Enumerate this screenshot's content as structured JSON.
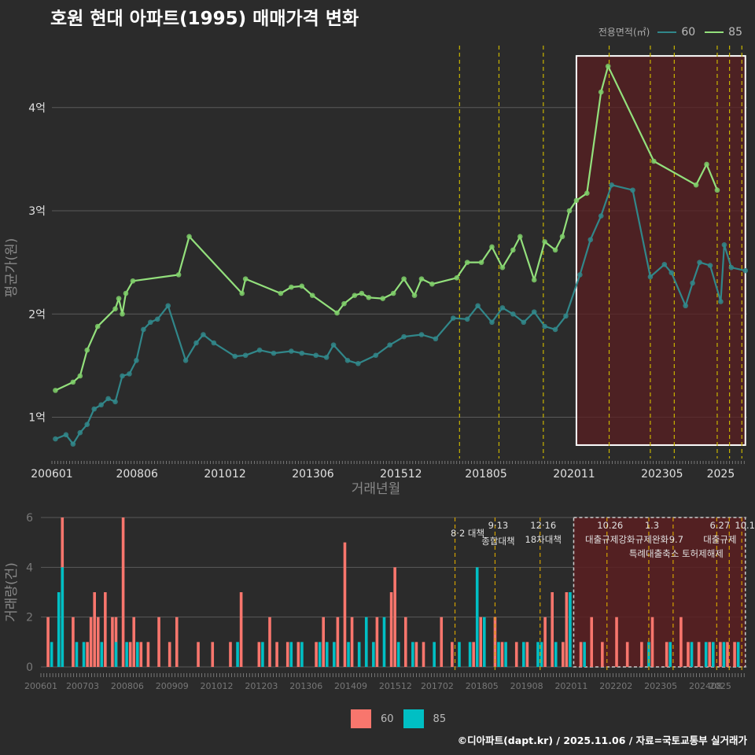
{
  "title": "호원 현대 아파트(1995) 매매가격 변화",
  "footer": "©디아파트(dapt.kr) / 2025.11.06 / 자료=국토교통부 실거래가",
  "colors": {
    "s60_line": "#31878a",
    "s60_point": "#31878a",
    "s85_line": "#93e07c",
    "s85_point": "#7fcf6a",
    "bar60": "#f8766d",
    "bar85": "#00bfc4",
    "policy": "#c8b400",
    "highlight": "#5a1f21"
  },
  "legend_top": {
    "title": "전용면적(㎡)",
    "items": [
      {
        "name": "60",
        "color": "#31878a"
      },
      {
        "name": "85",
        "color": "#93e07c"
      }
    ]
  },
  "legend_bottom": {
    "items": [
      {
        "name": "60",
        "color": "#f8766d"
      },
      {
        "name": "85",
        "color": "#00bfc4"
      }
    ]
  },
  "chart_data": [
    {
      "type": "line",
      "title": "호원 현대 아파트(1995) 매매가격 변화",
      "xlabel": "거래년월",
      "ylabel": "평균가(원)",
      "x_ticks": [
        "200601",
        "200806",
        "201012",
        "201306",
        "201512",
        "201805",
        "202011",
        "202305",
        "2025"
      ],
      "y_ticks": [
        {
          "value": 1,
          "label": "1억"
        },
        {
          "value": 2,
          "label": "2억"
        },
        {
          "value": 3,
          "label": "3억"
        },
        {
          "value": 4,
          "label": "4억"
        }
      ],
      "ylim": [
        0.6,
        4.6
      ],
      "xlim": [
        2006.0,
        2025.75
      ],
      "highlight": {
        "from": 2020.9,
        "to": 2025.7,
        "ymin": 0.73,
        "ymax": 4.5
      },
      "policy_lines": [
        2017.58,
        2018.7,
        2019.96,
        2021.83,
        2023.0,
        2023.68,
        2024.9,
        2025.25,
        2025.6
      ],
      "series": [
        {
          "name": "60",
          "points": [
            [
              2006.1,
              0.79
            ],
            [
              2006.4,
              0.83
            ],
            [
              2006.6,
              0.74
            ],
            [
              2006.8,
              0.85
            ],
            [
              2007.0,
              0.93
            ],
            [
              2007.2,
              1.08
            ],
            [
              2007.4,
              1.12
            ],
            [
              2007.6,
              1.18
            ],
            [
              2007.8,
              1.15
            ],
            [
              2008.0,
              1.4
            ],
            [
              2008.2,
              1.42
            ],
            [
              2008.4,
              1.55
            ],
            [
              2008.6,
              1.85
            ],
            [
              2008.8,
              1.92
            ],
            [
              2009.0,
              1.95
            ],
            [
              2009.3,
              2.08
            ],
            [
              2009.8,
              1.55
            ],
            [
              2010.1,
              1.72
            ],
            [
              2010.3,
              1.8
            ],
            [
              2010.6,
              1.72
            ],
            [
              2011.2,
              1.59
            ],
            [
              2011.5,
              1.6
            ],
            [
              2011.9,
              1.65
            ],
            [
              2012.3,
              1.62
            ],
            [
              2012.8,
              1.64
            ],
            [
              2013.1,
              1.62
            ],
            [
              2013.5,
              1.6
            ],
            [
              2013.8,
              1.58
            ],
            [
              2014.0,
              1.7
            ],
            [
              2014.4,
              1.55
            ],
            [
              2014.7,
              1.52
            ],
            [
              2015.2,
              1.6
            ],
            [
              2015.6,
              1.7
            ],
            [
              2016.0,
              1.78
            ],
            [
              2016.5,
              1.8
            ],
            [
              2016.9,
              1.76
            ],
            [
              2017.4,
              1.96
            ],
            [
              2017.8,
              1.95
            ],
            [
              2018.1,
              2.08
            ],
            [
              2018.5,
              1.92
            ],
            [
              2018.8,
              2.06
            ],
            [
              2019.1,
              2.0
            ],
            [
              2019.4,
              1.92
            ],
            [
              2019.7,
              2.02
            ],
            [
              2020.0,
              1.88
            ],
            [
              2020.3,
              1.85
            ],
            [
              2020.6,
              1.98
            ],
            [
              2021.0,
              2.38
            ],
            [
              2021.3,
              2.72
            ],
            [
              2021.6,
              2.95
            ],
            [
              2021.9,
              3.25
            ],
            [
              2022.5,
              3.2
            ],
            [
              2023.0,
              2.36
            ],
            [
              2023.4,
              2.48
            ],
            [
              2023.6,
              2.4
            ],
            [
              2024.0,
              2.08
            ],
            [
              2024.2,
              2.3
            ],
            [
              2024.4,
              2.5
            ],
            [
              2024.7,
              2.47
            ],
            [
              2025.0,
              2.12
            ],
            [
              2025.1,
              2.67
            ],
            [
              2025.3,
              2.45
            ],
            [
              2025.7,
              2.42
            ]
          ]
        },
        {
          "name": "85",
          "points": [
            [
              2006.1,
              1.26
            ],
            [
              2006.6,
              1.34
            ],
            [
              2006.8,
              1.4
            ],
            [
              2007.0,
              1.65
            ],
            [
              2007.3,
              1.88
            ],
            [
              2007.8,
              2.05
            ],
            [
              2007.9,
              2.15
            ],
            [
              2008.0,
              2.0
            ],
            [
              2008.1,
              2.2
            ],
            [
              2008.3,
              2.32
            ],
            [
              2009.6,
              2.38
            ],
            [
              2009.9,
              2.75
            ],
            [
              2011.4,
              2.2
            ],
            [
              2011.5,
              2.34
            ],
            [
              2012.5,
              2.2
            ],
            [
              2012.8,
              2.26
            ],
            [
              2013.1,
              2.27
            ],
            [
              2013.4,
              2.18
            ],
            [
              2014.1,
              2.01
            ],
            [
              2014.3,
              2.1
            ],
            [
              2014.6,
              2.18
            ],
            [
              2014.8,
              2.2
            ],
            [
              2015.0,
              2.16
            ],
            [
              2015.4,
              2.15
            ],
            [
              2015.7,
              2.2
            ],
            [
              2016.0,
              2.34
            ],
            [
              2016.3,
              2.18
            ],
            [
              2016.5,
              2.34
            ],
            [
              2016.8,
              2.29
            ],
            [
              2017.5,
              2.35
            ],
            [
              2017.8,
              2.5
            ],
            [
              2018.2,
              2.5
            ],
            [
              2018.5,
              2.65
            ],
            [
              2018.8,
              2.45
            ],
            [
              2019.1,
              2.62
            ],
            [
              2019.3,
              2.75
            ],
            [
              2019.7,
              2.33
            ],
            [
              2020.0,
              2.7
            ],
            [
              2020.3,
              2.62
            ],
            [
              2020.5,
              2.75
            ],
            [
              2020.7,
              3.0
            ],
            [
              2020.9,
              3.1
            ],
            [
              2021.2,
              3.17
            ],
            [
              2021.6,
              4.15
            ],
            [
              2021.8,
              4.4
            ],
            [
              2023.1,
              3.48
            ],
            [
              2024.3,
              3.25
            ],
            [
              2024.6,
              3.45
            ],
            [
              2024.9,
              3.2
            ]
          ]
        }
      ]
    },
    {
      "type": "bar",
      "xlabel": "",
      "ylabel": "거래량(건)",
      "x_ticks": [
        "200601",
        "200703",
        "200806",
        "200909",
        "201012",
        "201203",
        "201306",
        "201409",
        "201512",
        "201702",
        "201805",
        "201908",
        "202011",
        "202202",
        "202305",
        "202408",
        "2025"
      ],
      "y_ticks": [
        0,
        2,
        4,
        6
      ],
      "ylim": [
        0,
        6
      ],
      "xlim": [
        2006.0,
        2025.75
      ],
      "highlight": {
        "from": 2020.9,
        "to": 2025.7
      },
      "policy_lines": [
        2017.58,
        2018.7,
        2019.96,
        2021.83,
        2023.0,
        2023.68,
        2024.9,
        2025.25,
        2025.6
      ],
      "policy_annotations": [
        {
          "date": "8·2",
          "name": "대책",
          "x": 2017.58
        },
        {
          "date": "9·13",
          "name": "종합대책",
          "x": 2018.7
        },
        {
          "date": "12·16",
          "name": "18차대책",
          "x": 2019.96
        },
        {
          "date": "10.26",
          "name": "대출규제강화",
          "x": 2021.83
        },
        {
          "date": "1.3",
          "name": "규제완화",
          "x": 2023.0
        },
        {
          "date": "9.7",
          "name": "특례대출축소 토허제해제",
          "x": 2023.68
        },
        {
          "date": "6.27",
          "name": "대출규제",
          "x": 2024.9
        },
        {
          "date": "10.1",
          "name": "",
          "x": 2025.6
        }
      ],
      "series": [
        {
          "name": "60",
          "values": [
            [
              2006.2,
              2
            ],
            [
              2006.5,
              1
            ],
            [
              2006.6,
              6
            ],
            [
              2006.9,
              2
            ],
            [
              2007.3,
              1
            ],
            [
              2007.4,
              2
            ],
            [
              2007.5,
              3
            ],
            [
              2007.6,
              2
            ],
            [
              2007.8,
              3
            ],
            [
              2008.0,
              2
            ],
            [
              2008.1,
              2
            ],
            [
              2008.3,
              6
            ],
            [
              2008.5,
              1
            ],
            [
              2008.6,
              2
            ],
            [
              2008.8,
              1
            ],
            [
              2009.0,
              1
            ],
            [
              2009.3,
              2
            ],
            [
              2009.6,
              1
            ],
            [
              2009.8,
              2
            ],
            [
              2010.4,
              1
            ],
            [
              2010.8,
              1
            ],
            [
              2011.3,
              1
            ],
            [
              2011.6,
              3
            ],
            [
              2012.1,
              1
            ],
            [
              2012.4,
              2
            ],
            [
              2012.6,
              1
            ],
            [
              2012.9,
              1
            ],
            [
              2013.2,
              1
            ],
            [
              2013.7,
              1
            ],
            [
              2013.9,
              2
            ],
            [
              2014.3,
              2
            ],
            [
              2014.5,
              5
            ],
            [
              2014.7,
              2
            ],
            [
              2015.1,
              1
            ],
            [
              2015.4,
              2
            ],
            [
              2015.8,
              3
            ],
            [
              2015.9,
              4
            ],
            [
              2016.2,
              2
            ],
            [
              2016.5,
              1
            ],
            [
              2016.7,
              1
            ],
            [
              2017.2,
              2
            ],
            [
              2017.5,
              1
            ],
            [
              2018.1,
              1
            ],
            [
              2018.3,
              2
            ],
            [
              2018.7,
              2
            ],
            [
              2018.9,
              1
            ],
            [
              2019.3,
              1
            ],
            [
              2019.6,
              1
            ],
            [
              2020.1,
              2
            ],
            [
              2020.3,
              3
            ],
            [
              2020.6,
              1
            ],
            [
              2020.7,
              3
            ],
            [
              2021.1,
              1
            ],
            [
              2021.4,
              2
            ],
            [
              2021.7,
              1
            ],
            [
              2022.1,
              2
            ],
            [
              2022.4,
              1
            ],
            [
              2022.8,
              1
            ],
            [
              2023.1,
              2
            ],
            [
              2023.5,
              1
            ],
            [
              2023.9,
              2
            ],
            [
              2024.1,
              1
            ],
            [
              2024.4,
              1
            ],
            [
              2024.7,
              1
            ],
            [
              2025.0,
              1
            ],
            [
              2025.2,
              1
            ],
            [
              2025.4,
              1
            ]
          ]
        },
        {
          "name": "85",
          "values": [
            [
              2006.3,
              1
            ],
            [
              2006.5,
              3
            ],
            [
              2006.6,
              4
            ],
            [
              2007.0,
              1
            ],
            [
              2007.2,
              1
            ],
            [
              2007.7,
              1
            ],
            [
              2008.1,
              1
            ],
            [
              2008.4,
              1
            ],
            [
              2008.7,
              1
            ],
            [
              2011.5,
              1
            ],
            [
              2012.2,
              1
            ],
            [
              2013.0,
              1
            ],
            [
              2013.3,
              1
            ],
            [
              2013.8,
              1
            ],
            [
              2014.0,
              1
            ],
            [
              2014.2,
              1
            ],
            [
              2014.6,
              1
            ],
            [
              2014.9,
              1
            ],
            [
              2015.1,
              2
            ],
            [
              2015.3,
              1
            ],
            [
              2015.6,
              2
            ],
            [
              2016.0,
              1
            ],
            [
              2016.4,
              1
            ],
            [
              2017.0,
              1
            ],
            [
              2017.7,
              1
            ],
            [
              2018.0,
              1
            ],
            [
              2018.2,
              4
            ],
            [
              2018.4,
              2
            ],
            [
              2018.8,
              1
            ],
            [
              2019.0,
              1
            ],
            [
              2019.5,
              1
            ],
            [
              2019.9,
              1
            ],
            [
              2020.0,
              1
            ],
            [
              2020.4,
              1
            ],
            [
              2020.8,
              3
            ],
            [
              2021.2,
              1
            ],
            [
              2023.0,
              1
            ],
            [
              2023.6,
              1
            ],
            [
              2024.2,
              1
            ],
            [
              2024.6,
              1
            ],
            [
              2024.8,
              1
            ],
            [
              2025.1,
              1
            ],
            [
              2025.5,
              1
            ]
          ]
        }
      ]
    }
  ]
}
